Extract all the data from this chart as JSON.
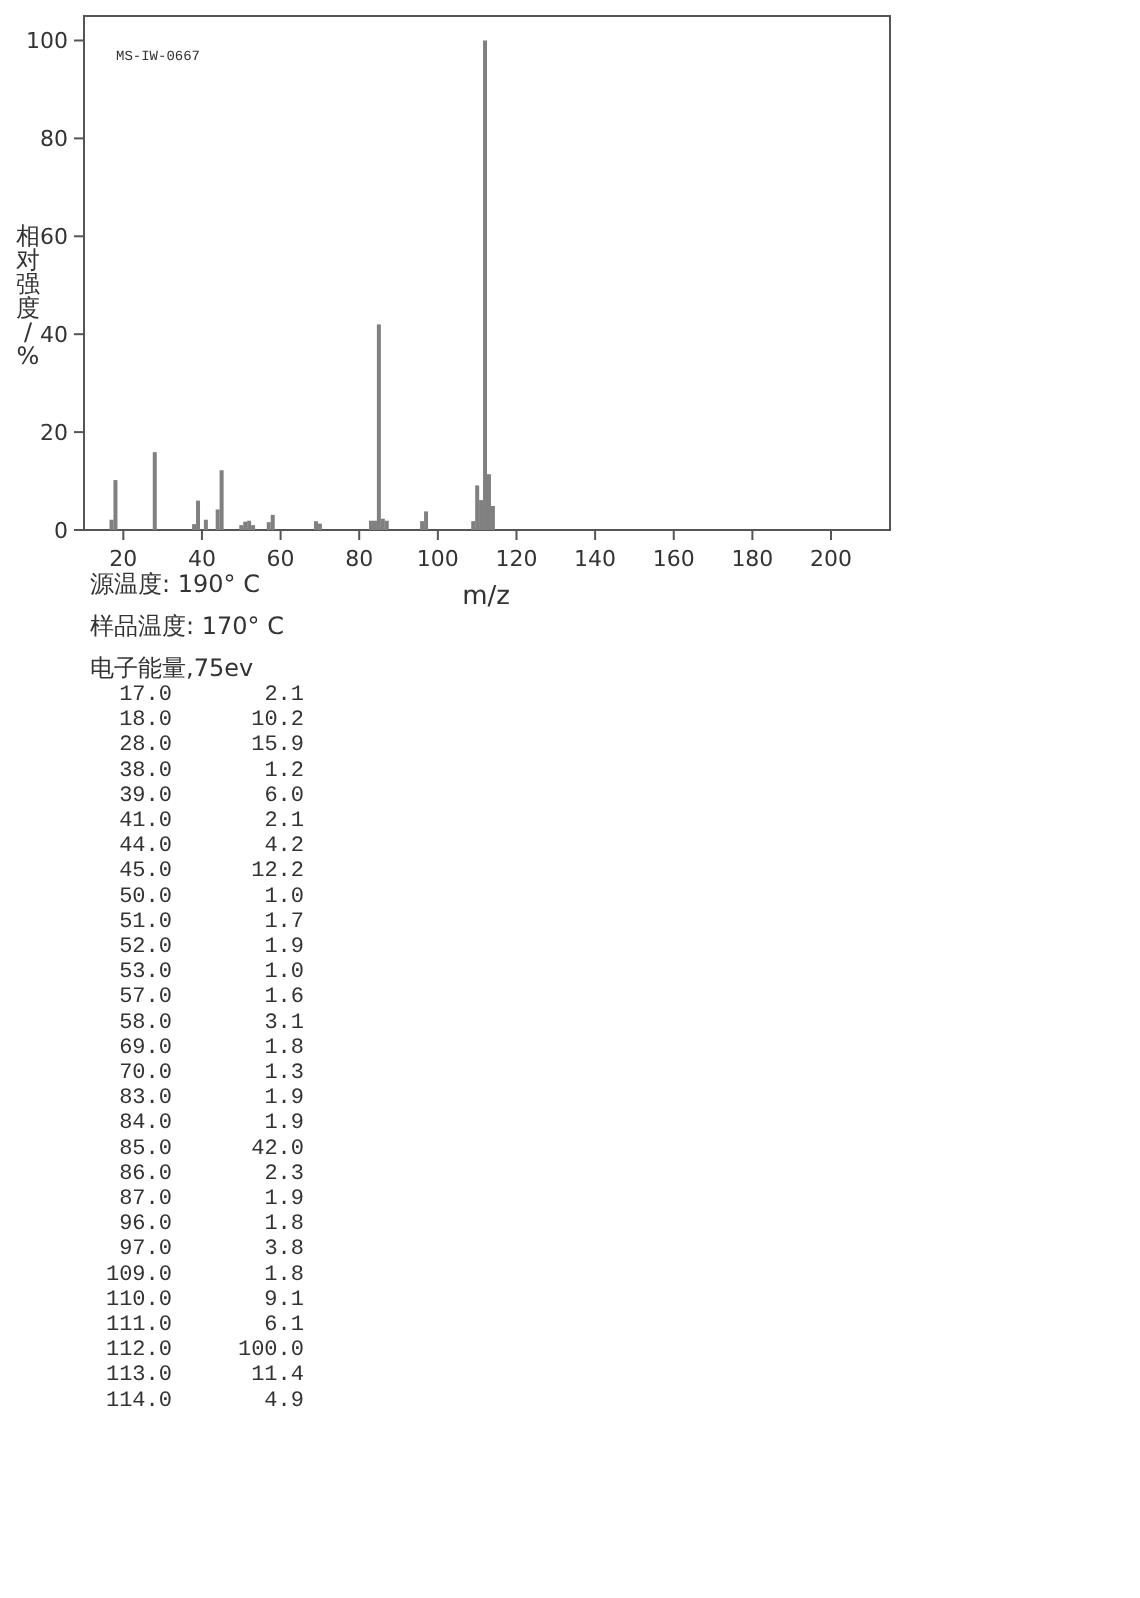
{
  "chart_data": [
    {
      "type": "bar",
      "ylabel": "相对强度/%",
      "xlabel": "m/z",
      "x": [
        17,
        18,
        28,
        38,
        39,
        41,
        44,
        45,
        50,
        51,
        52,
        53,
        57,
        58,
        69,
        70,
        83,
        84,
        85,
        86,
        87,
        96,
        97,
        109,
        110,
        111,
        112,
        113,
        114
      ],
      "values": [
        2.1,
        10.2,
        15.9,
        1.2,
        6.0,
        2.1,
        4.2,
        12.2,
        1.0,
        1.7,
        1.9,
        1.0,
        1.6,
        3.1,
        1.8,
        1.3,
        1.9,
        1.9,
        42.0,
        2.3,
        1.9,
        1.8,
        3.8,
        1.8,
        9.1,
        6.1,
        100.0,
        11.4,
        4.9
      ],
      "color": "#808080",
      "xlim": [
        10,
        215
      ],
      "xticks": [
        20,
        40,
        60,
        80,
        100,
        120,
        140,
        160,
        180,
        200
      ],
      "ylim": [
        0,
        105
      ],
      "yticks": [
        0,
        20,
        40,
        60,
        80,
        100
      ],
      "annotations": [
        "MS-IW-0667",
        "源温度: 190° C",
        "样品温度: 170° C",
        "电子能量,75ev"
      ]
    },
    {
      "type": "other",
      "annotations": [
        "17.0       2.1",
        "18.0      10.2",
        "28.0      15.9",
        "38.0       1.2",
        "39.0       6.0",
        "41.0       2.1",
        "44.0       4.2",
        "45.0      12.2",
        "50.0       1.0",
        "51.0       1.7",
        "52.0       1.9",
        "53.0       1.0",
        "57.0       1.6",
        "58.0       3.1",
        "69.0       1.8",
        "70.0       1.3",
        "83.0       1.9",
        "84.0       1.9",
        "85.0      42.0",
        "86.0       2.3",
        "87.0       1.9",
        "96.0       1.8",
        "97.0       3.8",
        "109.0       1.8",
        "110.0       9.1",
        "111.0       6.1",
        "112.0     100.0",
        "113.0      11.4",
        "114.0       4.9"
      ]
    }
  ]
}
